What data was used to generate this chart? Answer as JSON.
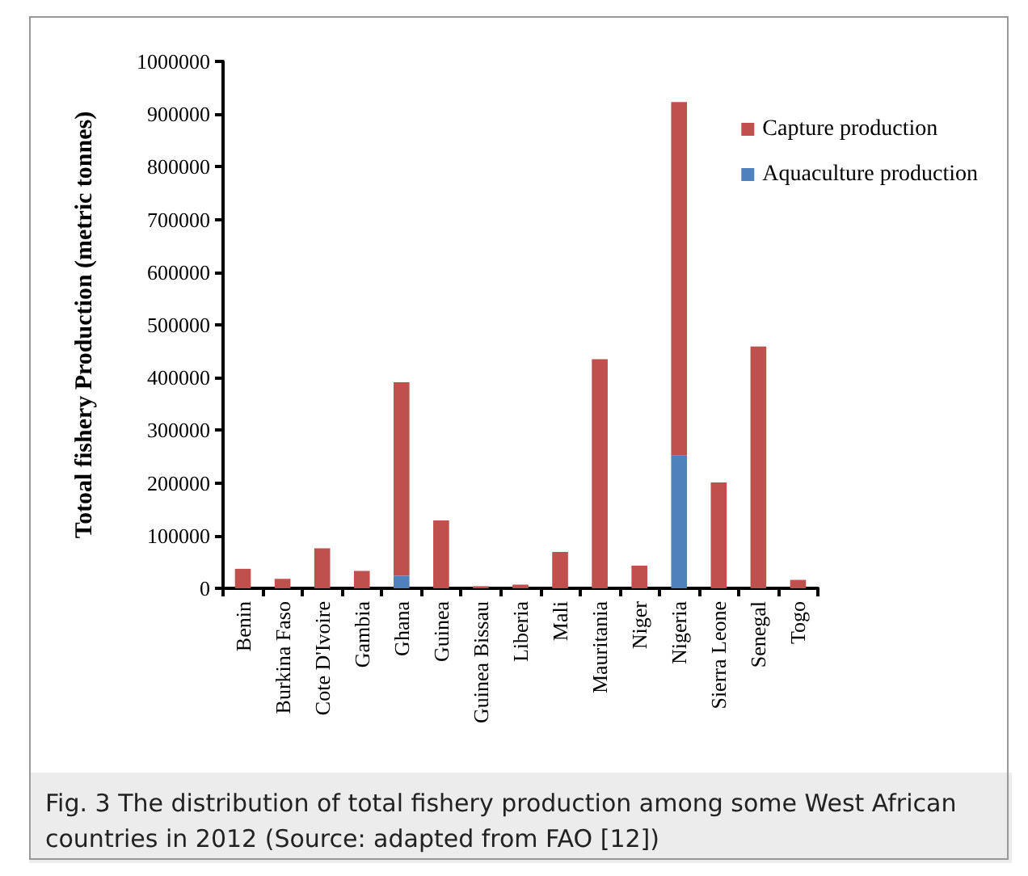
{
  "chart_data": {
    "type": "bar",
    "stacked": true,
    "ylabel": "Totoal fishery Production (metric tonnes)",
    "categories": [
      "Benin",
      "Burkina Faso",
      "Cote D'Ivoire",
      "Gambia",
      "Ghana",
      "Guinea",
      "Guinea Bissau",
      "Liberia",
      "Mali",
      "Mauritania",
      "Niger",
      "Nigeria",
      "Sierra Leone",
      "Senegal",
      "Togo"
    ],
    "series": [
      {
        "name": "Aquaculture production",
        "color": "#4f81bd",
        "values": [
          0,
          0,
          0,
          0,
          24000,
          0,
          0,
          0,
          0,
          0,
          0,
          252000,
          0,
          0,
          0
        ]
      },
      {
        "name": "Capture production",
        "color": "#c0504d",
        "values": [
          37000,
          18000,
          76000,
          33000,
          367000,
          129000,
          4000,
          7000,
          69000,
          435000,
          43000,
          671000,
          201000,
          459000,
          16000
        ]
      }
    ],
    "ylim": [
      0,
      1000000
    ],
    "yticks": [
      0,
      100000,
      200000,
      300000,
      400000,
      500000,
      600000,
      700000,
      800000,
      900000,
      1000000
    ],
    "grid": false,
    "legend": "top right",
    "annotations": [
      "Fig. 3 The distribution of total fishery production among some West African countries in 2012 (Source: adapted from FAO [12])"
    ]
  }
}
